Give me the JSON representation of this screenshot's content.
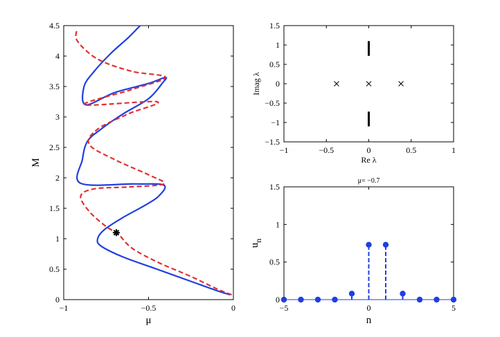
{
  "chart_data": [
    {
      "type": "line",
      "xlabel": "μ",
      "ylabel": "M",
      "xlim": [
        -1,
        0
      ],
      "ylim": [
        0,
        4.5
      ],
      "xticks": [
        -1,
        -0.5,
        0
      ],
      "xtick_labels": [
        "−1",
        "−0.5",
        "0"
      ],
      "yticks": [
        0,
        0.5,
        1,
        1.5,
        2,
        2.5,
        3,
        3.5,
        4,
        4.5
      ],
      "ytick_labels": [
        "0",
        "0.5",
        "1",
        "1.5",
        "2",
        "2.5",
        "3",
        "3.5",
        "4",
        "4.5"
      ],
      "series": [
        {
          "color": "#1f3fe0",
          "style": "solid",
          "points": [
            [
              -0.02,
              0.08
            ],
            [
              -0.1,
              0.15
            ],
            [
              -0.25,
              0.3
            ],
            [
              -0.45,
              0.5
            ],
            [
              -0.65,
              0.7
            ],
            [
              -0.78,
              0.88
            ],
            [
              -0.8,
              1.0
            ],
            [
              -0.76,
              1.15
            ],
            [
              -0.65,
              1.35
            ],
            [
              -0.52,
              1.55
            ],
            [
              -0.44,
              1.7
            ],
            [
              -0.41,
              1.88
            ],
            [
              -0.58,
              1.9
            ],
            [
              -0.9,
              1.91
            ],
            [
              -0.89,
              2.3
            ],
            [
              -0.86,
              2.6
            ],
            [
              -0.78,
              2.8
            ],
            [
              -0.65,
              3.05
            ],
            [
              -0.5,
              3.3
            ],
            [
              -0.42,
              3.55
            ],
            [
              -0.4,
              3.65
            ],
            [
              -0.5,
              3.55
            ],
            [
              -0.7,
              3.4
            ],
            [
              -0.87,
              3.2
            ],
            [
              -0.88,
              3.5
            ],
            [
              -0.82,
              3.75
            ],
            [
              -0.72,
              4.05
            ],
            [
              -0.62,
              4.3
            ],
            [
              -0.55,
              4.5
            ]
          ]
        },
        {
          "color": "#e03030",
          "style": "dashed",
          "points": [
            [
              -0.01,
              0.08
            ],
            [
              -0.1,
              0.18
            ],
            [
              -0.25,
              0.38
            ],
            [
              -0.45,
              0.62
            ],
            [
              -0.6,
              0.85
            ],
            [
              -0.68,
              1.08
            ],
            [
              -0.75,
              1.2
            ],
            [
              -0.85,
              1.45
            ],
            [
              -0.9,
              1.7
            ],
            [
              -0.82,
              1.82
            ],
            [
              -0.62,
              1.85
            ],
            [
              -0.41,
              1.9
            ],
            [
              -0.5,
              2.05
            ],
            [
              -0.7,
              2.3
            ],
            [
              -0.85,
              2.55
            ],
            [
              -0.8,
              2.8
            ],
            [
              -0.62,
              3.05
            ],
            [
              -0.45,
              3.25
            ],
            [
              -0.88,
              3.2
            ],
            [
              -0.6,
              3.45
            ],
            [
              -0.4,
              3.65
            ],
            [
              -0.6,
              3.75
            ],
            [
              -0.8,
              3.95
            ],
            [
              -0.92,
              4.25
            ],
            [
              -0.92,
              4.45
            ]
          ]
        }
      ],
      "marker": {
        "x": -0.69,
        "y": 1.1,
        "symbol": "*"
      }
    },
    {
      "type": "scatter",
      "xlabel": "Re  λ",
      "ylabel": "Imag  λ",
      "xlim": [
        -1,
        1
      ],
      "ylim": [
        -1.5,
        1.5
      ],
      "xticks": [
        -1,
        -0.5,
        0,
        0.5,
        1
      ],
      "xtick_labels": [
        "−1",
        "−0.5",
        "0",
        "0.5",
        "1"
      ],
      "yticks": [
        -1.5,
        -1,
        -0.5,
        0,
        0.5,
        1,
        1.5
      ],
      "ytick_labels": [
        "−1.5",
        "−1",
        "−0.5",
        "0",
        "0.5",
        "1",
        "1.5"
      ],
      "crosses": [
        [
          -0.38,
          0
        ],
        [
          0,
          0
        ],
        [
          0.38,
          0
        ]
      ],
      "vertical_bars": [
        {
          "x": 0,
          "y1": 0.72,
          "y2": 1.1
        },
        {
          "x": 0,
          "y1": -0.72,
          "y2": -1.1
        }
      ]
    },
    {
      "type": "stem",
      "title": "μ= −0.7",
      "xlabel": "n",
      "ylabel": "u",
      "ylabel_sub": "n",
      "xlim": [
        -5,
        5
      ],
      "ylim": [
        0,
        1.5
      ],
      "xticks": [
        -5,
        0,
        5
      ],
      "xtick_labels": [
        "−5",
        "0",
        "5"
      ],
      "yticks": [
        0,
        0.5,
        1,
        1.5
      ],
      "ytick_labels": [
        "0",
        "0.5",
        "1",
        "1.5"
      ],
      "x": [
        -5,
        -4,
        -3,
        -2,
        -1,
        0,
        1,
        2,
        3,
        4,
        5
      ],
      "values": [
        0,
        0,
        0,
        0,
        0.08,
        0.73,
        0.73,
        0.08,
        0,
        0,
        0
      ]
    }
  ]
}
